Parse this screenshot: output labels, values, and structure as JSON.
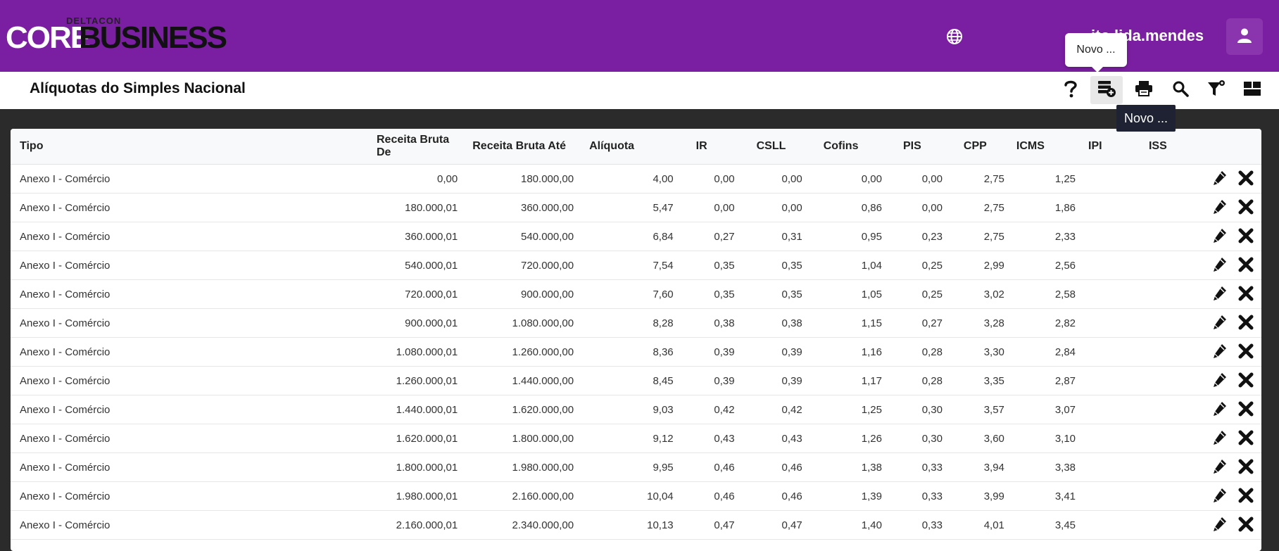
{
  "header": {
    "logo_top": "DELTACON",
    "logo_core": "CORE",
    "logo_business": "BUSINESS",
    "username": "ito.lida.mendes",
    "tooltip": "Novo ...",
    "brand_color": "#7b1fa2"
  },
  "toolbar": {
    "title": "Alíquotas do Simples Nacional",
    "tooltip": "Novo ...",
    "icons": [
      "help-icon",
      "new-record-icon",
      "print-icon",
      "search-icon",
      "filter-icon",
      "layout-icon"
    ]
  },
  "table": {
    "columns": [
      "Tipo",
      "Receita Bruta De",
      "Receita Bruta Até",
      "Alíquota",
      "IR",
      "CSLL",
      "Cofins",
      "PIS",
      "CPP",
      "ICMS",
      "IPI",
      "ISS"
    ],
    "rows": [
      [
        "Anexo I - Comércio",
        "0,00",
        "180.000,00",
        "4,00",
        "0,00",
        "0,00",
        "0,00",
        "0,00",
        "2,75",
        "1,25",
        "",
        ""
      ],
      [
        "Anexo I - Comércio",
        "180.000,01",
        "360.000,00",
        "5,47",
        "0,00",
        "0,00",
        "0,86",
        "0,00",
        "2,75",
        "1,86",
        "",
        ""
      ],
      [
        "Anexo I - Comércio",
        "360.000,01",
        "540.000,00",
        "6,84",
        "0,27",
        "0,31",
        "0,95",
        "0,23",
        "2,75",
        "2,33",
        "",
        ""
      ],
      [
        "Anexo I - Comércio",
        "540.000,01",
        "720.000,00",
        "7,54",
        "0,35",
        "0,35",
        "1,04",
        "0,25",
        "2,99",
        "2,56",
        "",
        ""
      ],
      [
        "Anexo I - Comércio",
        "720.000,01",
        "900.000,00",
        "7,60",
        "0,35",
        "0,35",
        "1,05",
        "0,25",
        "3,02",
        "2,58",
        "",
        ""
      ],
      [
        "Anexo I - Comércio",
        "900.000,01",
        "1.080.000,00",
        "8,28",
        "0,38",
        "0,38",
        "1,15",
        "0,27",
        "3,28",
        "2,82",
        "",
        ""
      ],
      [
        "Anexo I - Comércio",
        "1.080.000,01",
        "1.260.000,00",
        "8,36",
        "0,39",
        "0,39",
        "1,16",
        "0,28",
        "3,30",
        "2,84",
        "",
        ""
      ],
      [
        "Anexo I - Comércio",
        "1.260.000,01",
        "1.440.000,00",
        "8,45",
        "0,39",
        "0,39",
        "1,17",
        "0,28",
        "3,35",
        "2,87",
        "",
        ""
      ],
      [
        "Anexo I - Comércio",
        "1.440.000,01",
        "1.620.000,00",
        "9,03",
        "0,42",
        "0,42",
        "1,25",
        "0,30",
        "3,57",
        "3,07",
        "",
        ""
      ],
      [
        "Anexo I - Comércio",
        "1.620.000,01",
        "1.800.000,00",
        "9,12",
        "0,43",
        "0,43",
        "1,26",
        "0,30",
        "3,60",
        "3,10",
        "",
        ""
      ],
      [
        "Anexo I - Comércio",
        "1.800.000,01",
        "1.980.000,00",
        "9,95",
        "0,46",
        "0,46",
        "1,38",
        "0,33",
        "3,94",
        "3,38",
        "",
        ""
      ],
      [
        "Anexo I - Comércio",
        "1.980.000,01",
        "2.160.000,00",
        "10,04",
        "0,46",
        "0,46",
        "1,39",
        "0,33",
        "3,99",
        "3,41",
        "",
        ""
      ],
      [
        "Anexo I - Comércio",
        "2.160.000,01",
        "2.340.000,00",
        "10,13",
        "0,47",
        "0,47",
        "1,40",
        "0,33",
        "4,01",
        "3,45",
        "",
        ""
      ]
    ],
    "row_actions": [
      "edit-icon",
      "delete-icon"
    ]
  }
}
